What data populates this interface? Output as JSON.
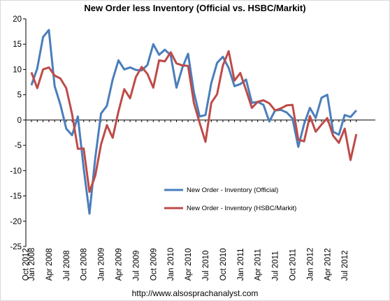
{
  "chart_data": {
    "type": "line",
    "title": "New Order less Inventory (Official vs. HSBC/Markit)",
    "ylim": [
      -25,
      20
    ],
    "yticks": [
      20,
      15,
      10,
      5,
      0,
      -5,
      -10,
      -15,
      -20,
      -25
    ],
    "grid": false,
    "legend_position": "center-right",
    "x_tick_labels": [
      "Jan 2008",
      "Apr 2008",
      "Jul 2008",
      "Oct 2008",
      "Jan 2009",
      "Apr 2009",
      "Jul 2009",
      "Oct 2009",
      "Jan 2010",
      "Apr 2010",
      "Jul 2010",
      "Oct 2010",
      "Jan 2011",
      "Apr 2011",
      "Jul 2011",
      "Oct 2011",
      "Jan 2012",
      "Apr 2012",
      "Jul 2012",
      "Oct 2012"
    ],
    "x": [
      "Jan 2008",
      "Feb 2008",
      "Mar 2008",
      "Apr 2008",
      "May 2008",
      "Jun 2008",
      "Jul 2008",
      "Aug 2008",
      "Sep 2008",
      "Oct 2008",
      "Nov 2008",
      "Dec 2008",
      "Jan 2009",
      "Feb 2009",
      "Mar 2009",
      "Apr 2009",
      "May 2009",
      "Jun 2009",
      "Jul 2009",
      "Aug 2009",
      "Sep 2009",
      "Oct 2009",
      "Nov 2009",
      "Dec 2009",
      "Jan 2010",
      "Feb 2010",
      "Mar 2010",
      "Apr 2010",
      "May 2010",
      "Jun 2010",
      "Jul 2010",
      "Aug 2010",
      "Sep 2010",
      "Oct 2010",
      "Nov 2010",
      "Dec 2010",
      "Jan 2011",
      "Feb 2011",
      "Mar 2011",
      "Apr 2011",
      "May 2011",
      "Jun 2011",
      "Jul 2011",
      "Aug 2011",
      "Sep 2011",
      "Oct 2011",
      "Nov 2011",
      "Dec 2011",
      "Jan 2012",
      "Feb 2012",
      "Mar 2012",
      "Apr 2012",
      "May 2012",
      "Jun 2012",
      "Jul 2012",
      "Aug 2012",
      "Sep 2012"
    ],
    "series": [
      {
        "name": "New Order - Inventory (Official)",
        "color": "#4a7ebb",
        "values": [
          6.9,
          10.2,
          16.4,
          17.8,
          6.7,
          3.0,
          -1.7,
          -3.0,
          0.7,
          -9.5,
          -18.5,
          -7.5,
          1.3,
          2.8,
          8.0,
          11.8,
          10.0,
          10.4,
          9.9,
          9.8,
          10.9,
          15.0,
          12.9,
          13.9,
          12.8,
          6.4,
          10.3,
          13.1,
          5.5,
          0.7,
          1.0,
          7.3,
          11.3,
          12.5,
          10.3,
          6.7,
          7.1,
          8.0,
          3.4,
          3.6,
          3.0,
          -0.3,
          1.9,
          2.0,
          1.5,
          0.3,
          -5.3,
          -0.8,
          2.4,
          0.4,
          4.4,
          5.0,
          -2.3,
          -2.9,
          1.0,
          0.6,
          1.9
        ]
      },
      {
        "name": "New Order - Inventory (HSBC/Markit)",
        "color": "#be4b48",
        "values": [
          9.4,
          6.3,
          10.0,
          10.4,
          8.8,
          8.2,
          6.3,
          1.2,
          -5.7,
          -5.6,
          -14.2,
          -11.0,
          -4.8,
          -1.0,
          -3.5,
          1.7,
          6.1,
          4.3,
          8.5,
          10.5,
          9.1,
          6.4,
          11.8,
          11.6,
          13.4,
          11.2,
          10.8,
          10.7,
          3.4,
          -0.6,
          -4.3,
          3.4,
          5.1,
          10.8,
          13.6,
          7.8,
          9.3,
          5.9,
          2.4,
          3.6,
          3.9,
          3.3,
          1.9,
          2.3,
          2.9,
          3.0,
          -3.9,
          -4.2,
          0.8,
          -2.3,
          -0.9,
          0.4,
          -3.1,
          -4.5,
          -1.7,
          -7.9,
          -2.8
        ]
      }
    ]
  },
  "source_text": "http://www.alsosprachanalyst.com"
}
